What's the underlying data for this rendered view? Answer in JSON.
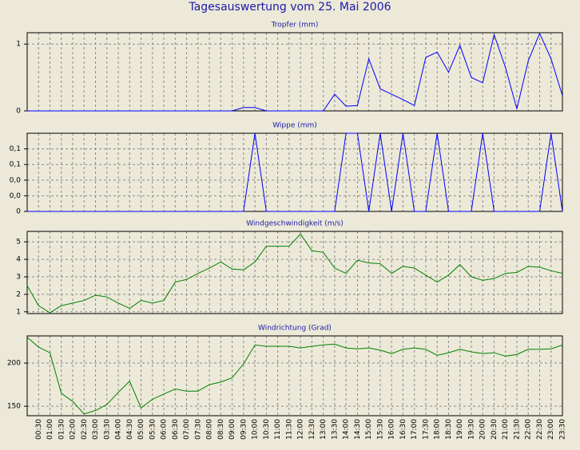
{
  "title": "Tagesauswertung vom 25. Mai 2006",
  "categories": [
    null,
    "00:30",
    "01:00",
    "01:30",
    "02:00",
    "02:30",
    "03:00",
    "03:30",
    "04:00",
    "04:30",
    "05:00",
    "05:30",
    "06:00",
    "06:30",
    "07:00",
    "07:30",
    "08:00",
    "08:30",
    "09:00",
    "09:30",
    "10:00",
    "10:30",
    "11:00",
    "11:30",
    "12:00",
    "12:30",
    "13:00",
    "13:30",
    "14:00",
    "14:30",
    "15:00",
    "15:30",
    "16:00",
    "16:30",
    "17:00",
    "17:30",
    "18:00",
    "18:30",
    "19:00",
    "19:30",
    "20:00",
    "20:30",
    "21:00",
    "21:30",
    "22:00",
    "22:30",
    "23:00",
    "23:30"
  ],
  "chart_data": [
    {
      "type": "line",
      "title": "Tropfer (mm)",
      "color": "#0000ff",
      "grid": true,
      "ylim": [
        0,
        1.17
      ],
      "yticks": [
        0,
        1
      ],
      "values": [
        0,
        0,
        0,
        0,
        0,
        0,
        0,
        0,
        0,
        0,
        0,
        0,
        0,
        0,
        0,
        0,
        0,
        0,
        0,
        0.05,
        0.05,
        0,
        0,
        0,
        0,
        0,
        0,
        0.25,
        0.07,
        0.08,
        0.78,
        0.33,
        0.25,
        0.17,
        0.08,
        0.8,
        0.88,
        0.58,
        0.98,
        0.5,
        0.42,
        1.14,
        0.65,
        0.03,
        0.75,
        1.16,
        0.78,
        0.23
      ]
    },
    {
      "type": "line",
      "title": "Wippe (mm)",
      "color": "#0000ff",
      "grid": true,
      "ylim": [
        0,
        0.1
      ],
      "yticks": [
        0,
        {
          "value": 0.02,
          "label": "0,0"
        },
        {
          "value": 0.04,
          "label": "0,0"
        },
        {
          "value": 0.06,
          "label": "0,1"
        },
        {
          "value": 0.08,
          "label": "0,1"
        }
      ],
      "values": [
        0,
        0,
        0,
        0,
        0,
        0,
        0,
        0,
        0,
        0,
        0,
        0,
        0,
        0,
        0,
        0,
        0,
        0,
        0,
        0,
        0.1,
        0,
        0,
        0,
        0,
        0,
        0,
        0,
        0.1,
        0.1,
        0,
        0.1,
        0,
        0.1,
        0,
        0,
        0.1,
        0,
        0,
        0,
        0.1,
        0,
        0,
        0,
        0,
        0,
        0.1,
        0
      ]
    },
    {
      "type": "line",
      "title": "Windgeschwindigkeit (m/s)",
      "color": "#008000",
      "grid": true,
      "ylim": [
        0.9,
        5.6
      ],
      "yticks": [
        1,
        2,
        3,
        4,
        5
      ],
      "values": [
        2.5,
        1.35,
        0.95,
        1.35,
        1.5,
        1.65,
        1.95,
        1.85,
        1.5,
        1.2,
        1.65,
        1.5,
        1.65,
        2.7,
        2.85,
        3.2,
        3.5,
        3.85,
        3.45,
        3.4,
        3.85,
        4.75,
        4.75,
        4.75,
        5.45,
        4.5,
        4.4,
        3.5,
        3.2,
        3.95,
        3.8,
        3.75,
        3.2,
        3.6,
        3.5,
        3.1,
        2.7,
        3.1,
        3.7,
        3.0,
        2.8,
        2.9,
        3.2,
        3.25,
        3.6,
        3.55,
        3.35,
        3.2
      ]
    },
    {
      "type": "line",
      "title": "Windrichtung (Grad)",
      "color": "#008000",
      "grid": true,
      "ylim": [
        139,
        231.5
      ],
      "yticks": [
        150,
        200
      ],
      "values": [
        230,
        218.5,
        212,
        165,
        155.5,
        141,
        145,
        152,
        166,
        179,
        148,
        158,
        164,
        170,
        167.5,
        167.5,
        175,
        178,
        183,
        199,
        221,
        219.5,
        219.5,
        219.5,
        217.5,
        219.5,
        221,
        222,
        217.5,
        216.5,
        217.5,
        215,
        211,
        216,
        217.5,
        216,
        209,
        212,
        216,
        213,
        211,
        212,
        208,
        210,
        216,
        216,
        216.5,
        221
      ]
    }
  ]
}
